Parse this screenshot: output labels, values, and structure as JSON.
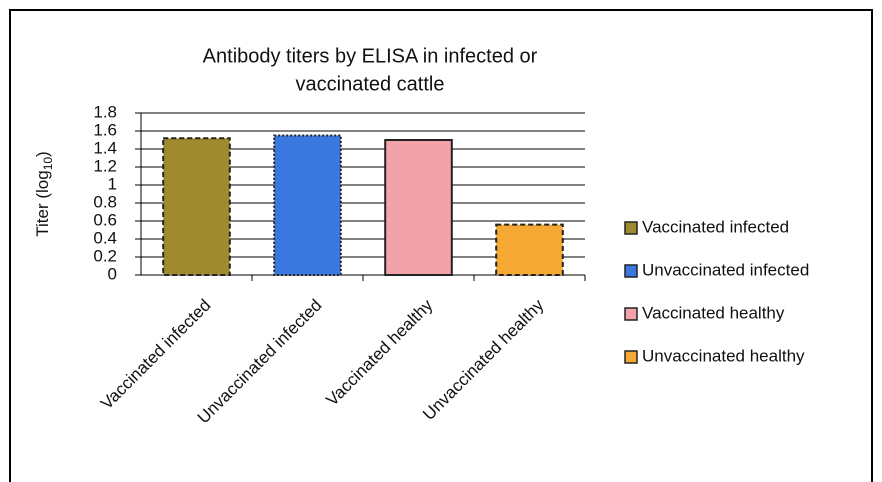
{
  "chart_data": {
    "type": "bar",
    "title": [
      "Antibody titers by ELISA in infected or",
      "vaccinated cattle"
    ],
    "y_label": [
      "Titer (log",
      "10",
      ")"
    ],
    "categories": [
      "Vaccinated infected",
      "Unvaccinated infected",
      "Vaccinated healthy",
      "Unvaccinated healthy"
    ],
    "values": [
      1.52,
      1.55,
      1.5,
      0.56
    ],
    "colors": [
      "#a08a30",
      "#3a78e0",
      "#f4a2aa",
      "#f6a834"
    ],
    "ylim": [
      0,
      1.8
    ],
    "yticks": [
      0,
      0.2,
      0.4,
      0.6,
      0.8,
      1,
      1.2,
      1.4,
      1.6,
      1.8
    ],
    "grid": true,
    "legend": "right"
  }
}
